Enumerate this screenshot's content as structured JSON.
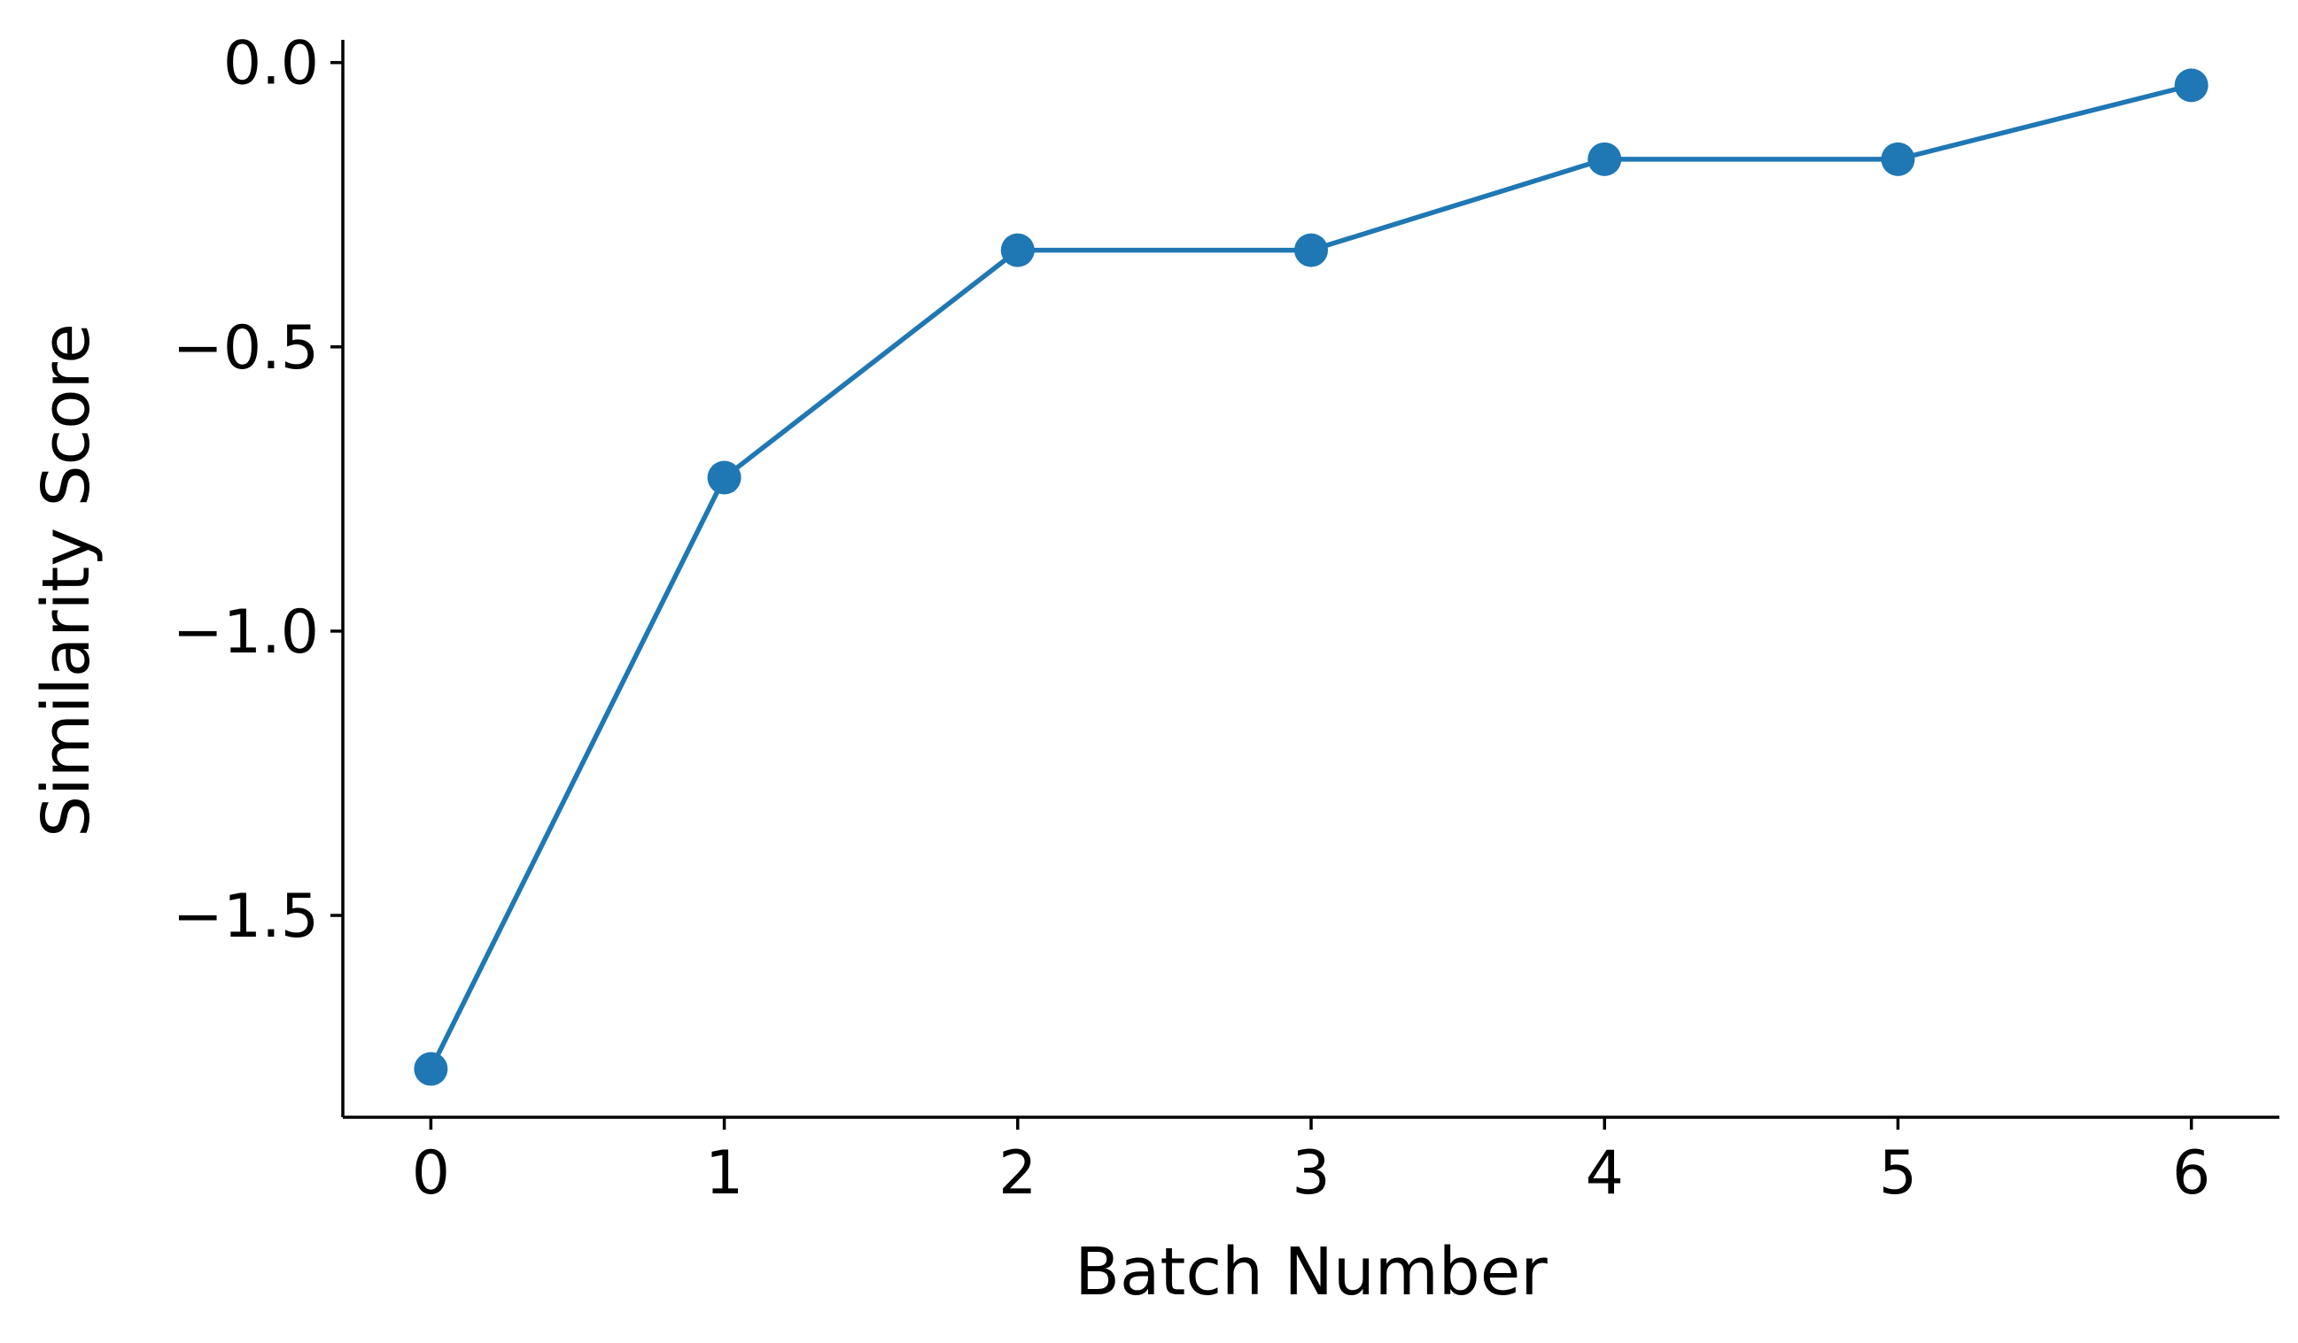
{
  "chart_data": {
    "type": "line",
    "title": "",
    "xlabel": "Batch Number",
    "ylabel": "Similarity Score",
    "x": [
      0,
      1,
      2,
      3,
      4,
      5,
      6
    ],
    "series": [
      {
        "values": [
          -1.77,
          -0.73,
          -0.33,
          -0.33,
          -0.17,
          -0.17,
          -0.04
        ]
      }
    ],
    "xticks": [
      0,
      1,
      2,
      3,
      4,
      5,
      6
    ],
    "xtick_labels": [
      "0",
      "1",
      "2",
      "3",
      "4",
      "5",
      "6"
    ],
    "yticks": [
      0.0,
      -0.5,
      -1.0,
      -1.5
    ],
    "ytick_labels": [
      "0.0",
      "−0.5",
      "−1.0",
      "−1.5"
    ],
    "xlim": [
      -0.3,
      6.3
    ],
    "ylim": [
      -1.855,
      0.04
    ],
    "grid": false,
    "legend": "none",
    "colors": {
      "line": "#1f77b4",
      "axis": "#000000"
    }
  }
}
